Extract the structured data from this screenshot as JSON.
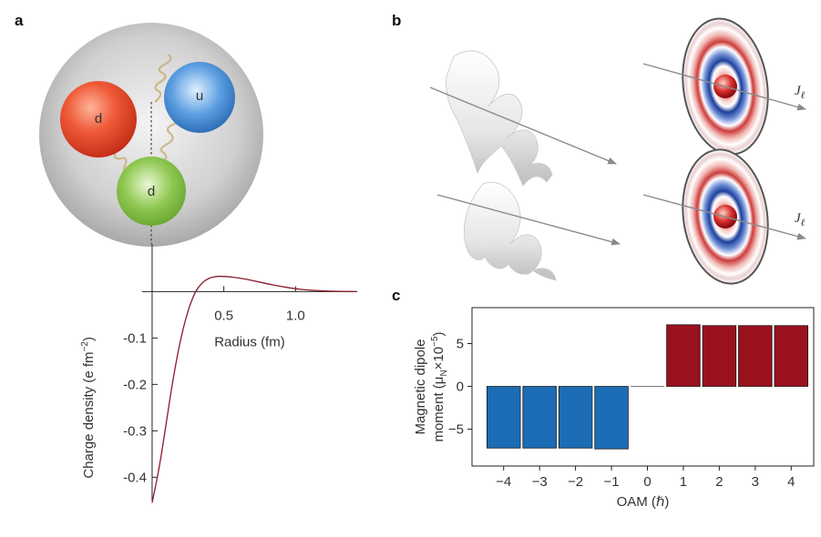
{
  "panels": {
    "a": "a",
    "b": "b",
    "c": "c"
  },
  "quarks": {
    "red": "d",
    "blue": "u",
    "green": "d"
  },
  "beam_labels": {
    "top": "J",
    "bottom": "J",
    "subscript": "ℓ"
  },
  "colors": {
    "red_quark": "#e8442c",
    "blue_quark": "#2b74c4",
    "green_quark": "#7ab83e",
    "curve": "#8b1a2a",
    "bar_negative": "#1c6db5",
    "bar_positive": "#9b111e"
  },
  "chart_data": [
    {
      "type": "line",
      "xlabel": "Radius (fm)",
      "ylabel": "Charge density (e fm",
      "ylabel_sup": "−2",
      "ylabel_end": ")",
      "xlim": [
        -0.4,
        1.43
      ],
      "ylim": [
        -0.47,
        0.04
      ],
      "xticks": [
        0.5,
        1.0
      ],
      "xtick_labels": [
        "0.5",
        "1.0"
      ],
      "yticks": [
        -0.1,
        -0.2,
        -0.3,
        -0.4
      ],
      "ytick_labels": [
        "-0.1",
        "-0.2",
        "-0.3",
        "-0.4"
      ],
      "x": [
        0.0,
        0.05,
        0.1,
        0.15,
        0.2,
        0.25,
        0.3,
        0.35,
        0.4,
        0.45,
        0.5,
        0.6,
        0.7,
        0.8,
        0.9,
        1.0,
        1.1,
        1.2,
        1.3,
        1.43
      ],
      "y": [
        -0.455,
        -0.38,
        -0.28,
        -0.18,
        -0.1,
        -0.04,
        0.0,
        0.02,
        0.03,
        0.033,
        0.033,
        0.03,
        0.024,
        0.017,
        0.011,
        0.006,
        0.003,
        0.0015,
        0.0005,
        0.0
      ]
    },
    {
      "type": "bar",
      "xlabel": "OAM (ℏ)",
      "ylabel_line1": "Magnetic dipole",
      "ylabel_line2": "moment (μ",
      "ylabel_sub": "N",
      "ylabel_end": "×10",
      "ylabel_sup": "−5",
      "ylabel_close": ")",
      "categories": [
        "−4",
        "−3",
        "−2",
        "−1",
        "0",
        "1",
        "2",
        "3",
        "4"
      ],
      "values": [
        -7.2,
        -7.2,
        -7.2,
        -7.3,
        0,
        7.2,
        7.1,
        7.1,
        7.1
      ],
      "ylim": [
        -9.3,
        9.2
      ],
      "yticks": [
        5,
        0,
        -5
      ],
      "ytick_labels": [
        "5",
        "0",
        "−5"
      ]
    }
  ]
}
